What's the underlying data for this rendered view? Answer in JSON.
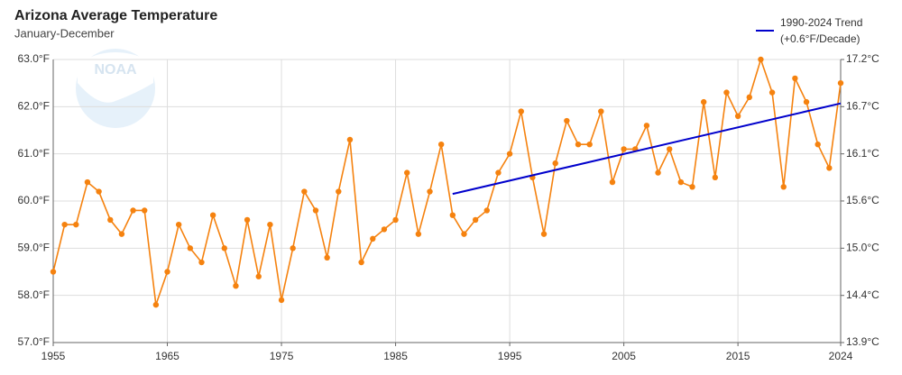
{
  "chart_data": {
    "type": "line",
    "title": "Arizona Average Temperature",
    "subtitle": "January-December",
    "logo_text": "NOAA",
    "legend_note": "(+0.6°F/Decade)",
    "xlim": [
      1955,
      2024
    ],
    "xticks": [
      1955,
      1965,
      1975,
      1985,
      1995,
      2005,
      2015,
      2024
    ],
    "ylim": [
      57,
      63
    ],
    "yticks": [
      {
        "value": 57,
        "label": "57.0°F"
      },
      {
        "value": 58,
        "label": "58.0°F"
      },
      {
        "value": 59,
        "label": "59.0°F"
      },
      {
        "value": 60,
        "label": "60.0°F"
      },
      {
        "value": 61,
        "label": "61.0°F"
      },
      {
        "value": 62,
        "label": "62.0°F"
      },
      {
        "value": 63,
        "label": "63.0°F"
      }
    ],
    "y2lim": [
      13.889,
      17.222
    ],
    "y2ticks": [
      {
        "value": 13.889,
        "label": "13.9°C"
      },
      {
        "value": 14.444,
        "label": "14.4°C"
      },
      {
        "value": 15.0,
        "label": "15.0°C"
      },
      {
        "value": 15.556,
        "label": "15.6°C"
      },
      {
        "value": 16.111,
        "label": "16.1°C"
      },
      {
        "value": 16.667,
        "label": "16.7°C"
      },
      {
        "value": 17.222,
        "label": "17.2°C"
      }
    ],
    "grid": true,
    "series": [
      {
        "color": "#f5820f",
        "x": [
          1955,
          1956,
          1957,
          1958,
          1959,
          1960,
          1961,
          1962,
          1963,
          1964,
          1965,
          1966,
          1967,
          1968,
          1969,
          1970,
          1971,
          1972,
          1973,
          1974,
          1975,
          1976,
          1977,
          1978,
          1979,
          1980,
          1981,
          1982,
          1983,
          1984,
          1985,
          1986,
          1987,
          1988,
          1989,
          1990,
          1991,
          1992,
          1993,
          1994,
          1995,
          1996,
          1997,
          1998,
          1999,
          2000,
          2001,
          2002,
          2003,
          2004,
          2005,
          2006,
          2007,
          2008,
          2009,
          2010,
          2011,
          2012,
          2013,
          2014,
          2015,
          2016,
          2017,
          2018,
          2019,
          2020,
          2021,
          2022,
          2023,
          2024
        ],
        "values": [
          58.5,
          59.5,
          59.5,
          60.4,
          60.2,
          59.6,
          59.3,
          59.8,
          59.8,
          57.8,
          58.5,
          59.5,
          59.0,
          58.7,
          59.7,
          59.0,
          58.2,
          59.6,
          58.4,
          59.5,
          57.9,
          59.0,
          60.2,
          59.8,
          58.8,
          60.2,
          61.3,
          58.7,
          59.2,
          59.4,
          59.6,
          60.6,
          59.3,
          60.2,
          61.2,
          59.7,
          59.3,
          59.6,
          59.8,
          60.6,
          61.0,
          61.9,
          60.5,
          59.3,
          60.8,
          61.7,
          61.2,
          61.2,
          61.9,
          60.4,
          61.1,
          61.1,
          61.6,
          60.6,
          61.1,
          60.4,
          60.3,
          62.1,
          60.5,
          62.3,
          61.8,
          62.2,
          63.0,
          62.3,
          60.3,
          62.6,
          62.1,
          61.2,
          60.7,
          62.5
        ]
      },
      {
        "name": "1990-2024 Trend",
        "color": "#0000cc",
        "x": [
          1990,
          2024
        ],
        "values": [
          60.15,
          62.07
        ]
      }
    ]
  }
}
